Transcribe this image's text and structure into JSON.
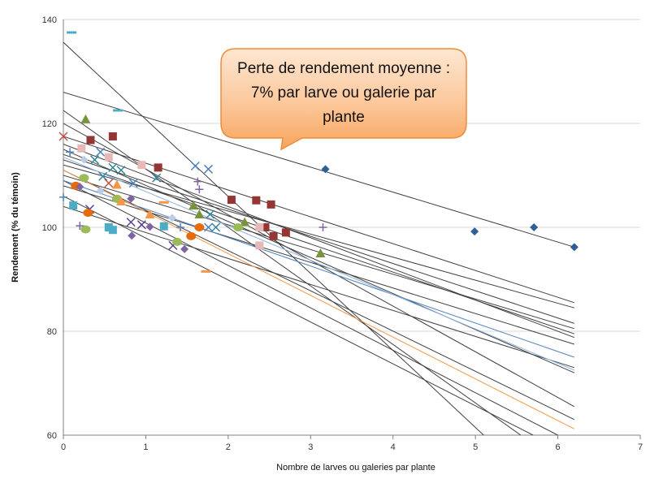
{
  "chart_data": {
    "type": "scatter",
    "xlabel": "Nombre de larves ou galeries par plante",
    "ylabel": "Rendement (% du témoin)",
    "xlim": [
      0,
      7
    ],
    "ylim": [
      60,
      140
    ],
    "xticks": [
      0,
      1,
      2,
      3,
      4,
      5,
      6,
      7
    ],
    "yticks": [
      60,
      80,
      100,
      120,
      140
    ],
    "grid": "horizontal",
    "annotation": "Perte de rendement moyenne : 7% par larve ou galerie par plante",
    "series": [
      {
        "marker": "diamond",
        "color": "#2e5f95",
        "points": [
          [
            3.18,
            111.2
          ],
          [
            4.99,
            99.2
          ],
          [
            5.71,
            100.0
          ],
          [
            6.2,
            96.2
          ]
        ]
      },
      {
        "marker": "square",
        "color": "#943634",
        "points": [
          [
            0.33,
            116.8
          ],
          [
            0.6,
            117.5
          ],
          [
            1.15,
            111.5
          ],
          [
            2.04,
            105.3
          ],
          [
            2.34,
            105.2
          ],
          [
            2.52,
            104.4
          ],
          [
            2.55,
            98.3
          ],
          [
            2.7,
            99.0
          ],
          [
            2.45,
            100.0
          ]
        ]
      },
      {
        "marker": "triangle",
        "color": "#77933c",
        "points": [
          [
            0.27,
            120.8
          ],
          [
            1.58,
            104.2
          ],
          [
            1.65,
            102.5
          ],
          [
            2.2,
            101.0
          ],
          [
            3.12,
            95.0
          ]
        ]
      },
      {
        "marker": "x",
        "color": "#5c3e8e",
        "points": [
          [
            0.32,
            103.5
          ],
          [
            0.82,
            101.0
          ],
          [
            0.95,
            100.5
          ],
          [
            1.33,
            96.5
          ]
        ]
      },
      {
        "marker": "x",
        "color": "#31859c",
        "points": [
          [
            0.38,
            113.0
          ],
          [
            0.48,
            109.8
          ],
          [
            0.6,
            111.5
          ],
          [
            0.7,
            111.0
          ],
          [
            1.13,
            109.5
          ],
          [
            1.78,
            102.5
          ],
          [
            1.85,
            100.0
          ]
        ]
      },
      {
        "marker": "x",
        "color": "#4f81bd",
        "points": [
          [
            0.45,
            114.5
          ],
          [
            0.85,
            108.5
          ],
          [
            1.6,
            111.8
          ],
          [
            1.76,
            111.2
          ],
          [
            1.76,
            100.0
          ]
        ]
      },
      {
        "marker": "x",
        "color": "#c0504d",
        "points": [
          [
            0.0,
            117.5
          ],
          [
            0.55,
            108.5
          ]
        ]
      },
      {
        "marker": "circle",
        "color": "#9bbb59",
        "points": [
          [
            0.25,
            109.5
          ],
          [
            0.27,
            99.6
          ],
          [
            0.65,
            105.5
          ],
          [
            1.38,
            97.2
          ],
          [
            2.12,
            100.0
          ]
        ]
      },
      {
        "marker": "circle",
        "color": "#e46c0a",
        "points": [
          [
            0.15,
            108.0
          ],
          [
            0.3,
            102.8
          ],
          [
            1.55,
            98.3
          ],
          [
            1.65,
            100.0
          ]
        ]
      },
      {
        "marker": "square",
        "color": "#4bacc6",
        "points": [
          [
            0.12,
            104.2
          ],
          [
            0.55,
            100.0
          ],
          [
            0.6,
            99.5
          ],
          [
            1.22,
            100.2
          ]
        ]
      },
      {
        "marker": "square",
        "color": "#e6b9b8",
        "points": [
          [
            0.22,
            115.2
          ],
          [
            0.55,
            113.5
          ],
          [
            0.95,
            112.0
          ],
          [
            2.38,
            96.5
          ],
          [
            2.38,
            100.0
          ]
        ]
      },
      {
        "marker": "triangle",
        "color": "#f79646",
        "points": [
          [
            0.65,
            108.2
          ],
          [
            0.7,
            105.0
          ],
          [
            1.05,
            102.5
          ]
        ]
      },
      {
        "marker": "diamond",
        "color": "#b9cde5",
        "points": [
          [
            0.25,
            113.0
          ],
          [
            0.45,
            107.0
          ],
          [
            1.32,
            101.8
          ]
        ]
      },
      {
        "marker": "diamond",
        "color": "#8064a2",
        "points": [
          [
            0.2,
            107.8
          ],
          [
            0.82,
            105.5
          ],
          [
            0.83,
            98.4
          ],
          [
            1.05,
            100.1
          ],
          [
            1.47,
            95.8
          ]
        ]
      },
      {
        "marker": "plus",
        "color": "#8064a2",
        "points": [
          [
            0.2,
            100.3
          ],
          [
            1.63,
            108.8
          ],
          [
            1.65,
            107.3
          ],
          [
            3.15,
            100.0
          ]
        ]
      },
      {
        "marker": "plus",
        "color": "#4f81bd",
        "points": [
          [
            0.0,
            105.8
          ],
          [
            0.08,
            114.5
          ],
          [
            1.42,
            100.0
          ]
        ]
      },
      {
        "marker": "dash",
        "color": "#4bacc6",
        "points": [
          [
            0.1,
            137.5
          ],
          [
            0.66,
            122.5
          ]
        ]
      },
      {
        "marker": "dash",
        "color": "#f79646",
        "points": [
          [
            1.22,
            104.8
          ],
          [
            1.73,
            91.5
          ]
        ]
      }
    ],
    "trendlines": [
      {
        "color": "#404040",
        "x": [
          0.0,
          6.2
        ],
        "y": [
          126.0,
          96.2
        ]
      },
      {
        "color": "#404040",
        "x": [
          0.0,
          5.1
        ],
        "y": [
          135.6,
          60.0
        ]
      },
      {
        "color": "#404040",
        "x": [
          0.0,
          5.55
        ],
        "y": [
          122.5,
          60.0
        ]
      },
      {
        "color": "#404040",
        "x": [
          0.0,
          6.2
        ],
        "y": [
          120.0,
          65.5
        ]
      },
      {
        "color": "#404040",
        "x": [
          0.0,
          6.2
        ],
        "y": [
          117.5,
          85.5
        ]
      },
      {
        "color": "#404040",
        "x": [
          0.0,
          6.2
        ],
        "y": [
          116.0,
          78.8
        ]
      },
      {
        "color": "#404040",
        "x": [
          0.0,
          6.2
        ],
        "y": [
          115.0,
          72.0
        ]
      },
      {
        "color": "#404040",
        "x": [
          0.0,
          6.2
        ],
        "y": [
          114.0,
          81.5
        ]
      },
      {
        "color": "#404040",
        "x": [
          0.0,
          6.2
        ],
        "y": [
          113.0,
          79.5
        ]
      },
      {
        "color": "#404040",
        "x": [
          0.0,
          6.2
        ],
        "y": [
          112.0,
          84.5
        ]
      },
      {
        "color": "#404040",
        "x": [
          0.0,
          6.2
        ],
        "y": [
          111.0,
          63.0
        ]
      },
      {
        "color": "#404040",
        "x": [
          0.0,
          6.2
        ],
        "y": [
          110.0,
          80.5
        ]
      },
      {
        "color": "#404040",
        "x": [
          0.0,
          6.0
        ],
        "y": [
          109.0,
          60.0
        ]
      },
      {
        "color": "#404040",
        "x": [
          0.0,
          6.2
        ],
        "y": [
          108.0,
          77.5
        ]
      },
      {
        "color": "#404040",
        "x": [
          0.0,
          5.7
        ],
        "y": [
          106.0,
          60.0
        ]
      },
      {
        "color": "#404040",
        "x": [
          0.0,
          6.2
        ],
        "y": [
          104.0,
          73.0
        ]
      },
      {
        "color": "#4f81bd",
        "x": [
          0.0,
          6.2
        ],
        "y": [
          109.0,
          75.0
        ]
      },
      {
        "color": "#8db3e2",
        "x": [
          0.0,
          6.2
        ],
        "y": [
          113.5,
          72.5
        ]
      },
      {
        "color": "#f79646",
        "x": [
          0.0,
          6.2
        ],
        "y": [
          111.0,
          61.2
        ]
      }
    ]
  }
}
